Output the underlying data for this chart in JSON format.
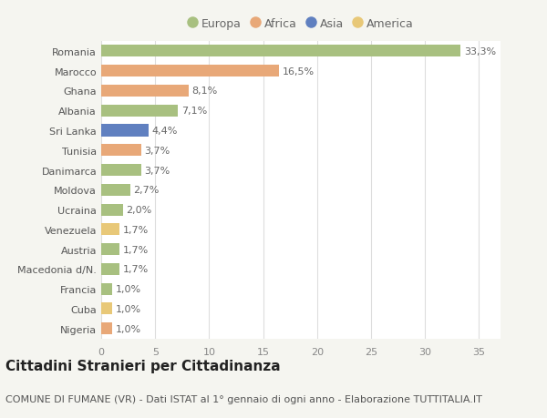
{
  "countries": [
    "Romania",
    "Marocco",
    "Ghana",
    "Albania",
    "Sri Lanka",
    "Tunisia",
    "Danimarca",
    "Moldova",
    "Ucraina",
    "Venezuela",
    "Austria",
    "Macedonia d/N.",
    "Francia",
    "Cuba",
    "Nigeria"
  ],
  "values": [
    33.3,
    16.5,
    8.1,
    7.1,
    4.4,
    3.7,
    3.7,
    2.7,
    2.0,
    1.7,
    1.7,
    1.7,
    1.0,
    1.0,
    1.0
  ],
  "labels": [
    "33,3%",
    "16,5%",
    "8,1%",
    "7,1%",
    "4,4%",
    "3,7%",
    "3,7%",
    "2,7%",
    "2,0%",
    "1,7%",
    "1,7%",
    "1,7%",
    "1,0%",
    "1,0%",
    "1,0%"
  ],
  "continents": [
    "Europa",
    "Africa",
    "Africa",
    "Europa",
    "Asia",
    "Africa",
    "Europa",
    "Europa",
    "Europa",
    "America",
    "Europa",
    "Europa",
    "Europa",
    "America",
    "Africa"
  ],
  "colors": {
    "Europa": "#a8c080",
    "Africa": "#e8a878",
    "Asia": "#6080c0",
    "America": "#e8c878"
  },
  "legend_order": [
    "Europa",
    "Africa",
    "Asia",
    "America"
  ],
  "title": "Cittadini Stranieri per Cittadinanza",
  "subtitle": "COMUNE DI FUMANE (VR) - Dati ISTAT al 1° gennaio di ogni anno - Elaborazione TUTTITALIA.IT",
  "xlim": [
    0,
    37
  ],
  "xticks": [
    0,
    5,
    10,
    15,
    20,
    25,
    30,
    35
  ],
  "background_color": "#f5f5f0",
  "plot_background": "#ffffff",
  "grid_color": "#dddddd",
  "title_fontsize": 11,
  "subtitle_fontsize": 8,
  "label_fontsize": 8,
  "tick_fontsize": 8,
  "bar_height": 0.6
}
